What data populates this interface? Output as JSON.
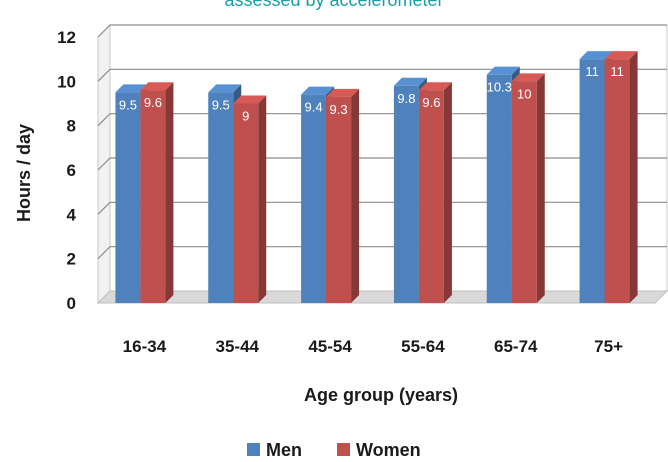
{
  "title_fragment": "assessed by accelerometer",
  "chart_data": {
    "type": "bar",
    "categories": [
      "16-34",
      "35-44",
      "45-54",
      "55-64",
      "65-74",
      "75+"
    ],
    "series": [
      {
        "name": "Men",
        "values": [
          9.5,
          9.5,
          9.4,
          9.8,
          10.3,
          11
        ],
        "labels": [
          "9.5",
          "9.5",
          "9.4",
          "9.8",
          "10.3",
          "11"
        ],
        "color": "#4f81bd"
      },
      {
        "name": "Women",
        "values": [
          9.6,
          9,
          9.3,
          9.6,
          10,
          11
        ],
        "labels": [
          "9.6",
          "9",
          "9.3",
          "9.6",
          "10",
          "11"
        ],
        "color": "#c0504d"
      }
    ],
    "ylim": [
      0,
      12
    ],
    "yticks": [
      "0",
      "2",
      "4",
      "6",
      "8",
      "10",
      "12"
    ],
    "ylabel": "Hours / day",
    "xlabel": "Age group (years)",
    "grid": true,
    "legend": "bottom"
  }
}
